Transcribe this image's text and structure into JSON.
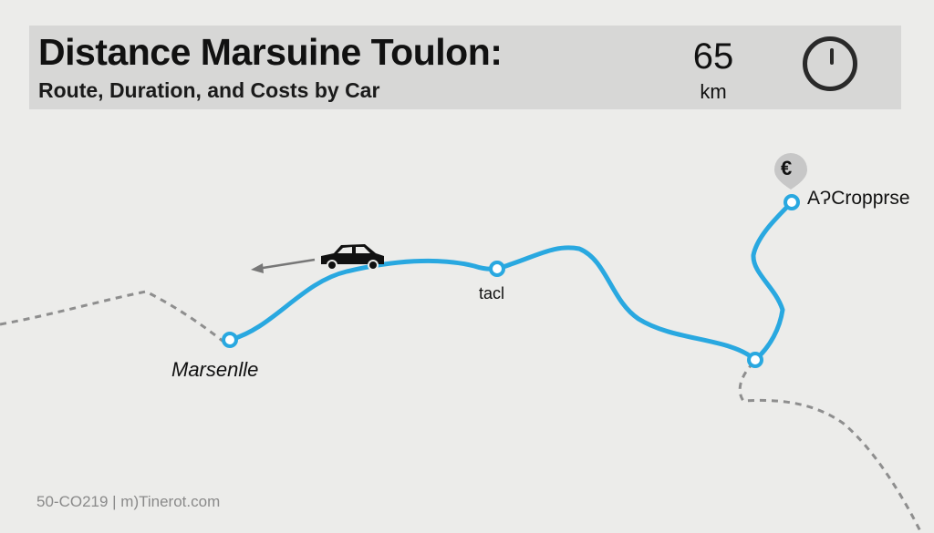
{
  "header": {
    "title": "Distance Marsuine Toulon:",
    "subtitle": "Route, Duration, and Costs by Car",
    "distance_value": "65",
    "distance_unit": "km",
    "icon": "clock-icon"
  },
  "map": {
    "route_color": "#29a8e0",
    "labels": {
      "start": "Marsenlle",
      "mid": "tacl",
      "end": "AɁCropрrse"
    },
    "pin_symbol": "€",
    "car_icon": "car-icon"
  },
  "footer": {
    "text": "50-CO219 | m)Tinerot.com"
  }
}
